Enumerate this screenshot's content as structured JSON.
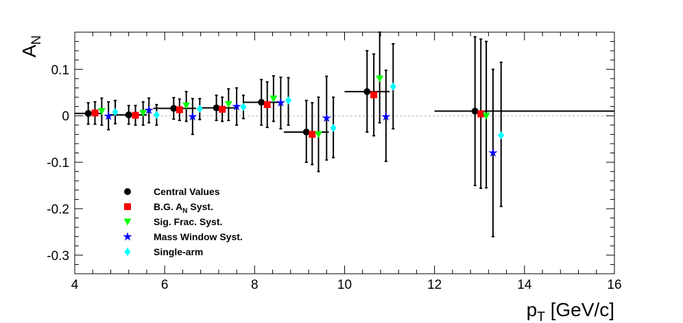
{
  "chart_data": {
    "type": "scatter",
    "title": "",
    "xlabel": {
      "main": "p",
      "sub": "T",
      "rest": " [GeV/c]"
    },
    "ylabel": {
      "main": "A",
      "sub": "N"
    },
    "xlim": [
      4,
      16
    ],
    "ylim": [
      -0.34,
      0.18
    ],
    "xticks": [
      {
        "v": 4,
        "label": "4"
      },
      {
        "v": 6,
        "label": "6"
      },
      {
        "v": 8,
        "label": "8"
      },
      {
        "v": 10,
        "label": "10"
      },
      {
        "v": 12,
        "label": "12"
      },
      {
        "v": 14,
        "label": "14"
      },
      {
        "v": 16,
        "label": "16"
      }
    ],
    "yticks": [
      {
        "v": 0.1,
        "label": "0.1"
      },
      {
        "v": 0,
        "label": "0"
      },
      {
        "v": -0.1,
        "label": "-0.1"
      },
      {
        "v": -0.2,
        "label": "-0.2"
      },
      {
        "v": -0.3,
        "label": "-0.3"
      }
    ],
    "zero_line": true,
    "grid": false,
    "legend_position": "bottom-left",
    "series": [
      {
        "name": "Central Values",
        "color": "#000000",
        "marker": "circle",
        "points": [
          {
            "x": 4.3,
            "y": 0.005,
            "xlo": 4.0,
            "xhi": 4.6,
            "ylo": -0.018,
            "yhi": 0.028
          },
          {
            "x": 5.2,
            "y": 0.002,
            "xlo": 4.75,
            "xhi": 5.6,
            "ylo": -0.018,
            "yhi": 0.022
          },
          {
            "x": 6.2,
            "y": 0.016,
            "xlo": 5.75,
            "xhi": 6.7,
            "ylo": -0.007,
            "yhi": 0.039
          },
          {
            "x": 7.15,
            "y": 0.017,
            "xlo": 6.8,
            "xhi": 7.6,
            "ylo": -0.01,
            "yhi": 0.044
          },
          {
            "x": 8.15,
            "y": 0.029,
            "xlo": 7.75,
            "xhi": 8.6,
            "ylo": -0.02,
            "yhi": 0.078
          },
          {
            "x": 9.15,
            "y": -0.035,
            "xlo": 8.65,
            "xhi": 9.65,
            "ylo": -0.1,
            "yhi": 0.033
          },
          {
            "x": 10.5,
            "y": 0.052,
            "xlo": 10.0,
            "xhi": 11.0,
            "ylo": -0.035,
            "yhi": 0.14
          },
          {
            "x": 12.9,
            "y": 0.01,
            "xlo": 12.0,
            "xhi": 16.0,
            "ylo": -0.15,
            "yhi": 0.17
          }
        ]
      },
      {
        "name": "B.G. A_N Syst.",
        "color": "#ff0000",
        "marker": "square",
        "points": [
          {
            "x": 4.45,
            "y": 0.006,
            "ylo": -0.018,
            "yhi": 0.03
          },
          {
            "x": 5.35,
            "y": 0.001,
            "ylo": -0.02,
            "yhi": 0.022
          },
          {
            "x": 6.33,
            "y": 0.013,
            "ylo": -0.01,
            "yhi": 0.036
          },
          {
            "x": 7.28,
            "y": 0.014,
            "ylo": -0.012,
            "yhi": 0.04
          },
          {
            "x": 8.28,
            "y": 0.024,
            "ylo": -0.025,
            "yhi": 0.073
          },
          {
            "x": 9.28,
            "y": -0.04,
            "ylo": -0.105,
            "yhi": 0.028
          },
          {
            "x": 10.65,
            "y": 0.045,
            "ylo": -0.043,
            "yhi": 0.133
          },
          {
            "x": 13.03,
            "y": 0.004,
            "ylo": -0.156,
            "yhi": 0.165
          }
        ]
      },
      {
        "name": "Sig. Frac. Syst.",
        "color": "#00ff00",
        "marker": "triangle-down",
        "points": [
          {
            "x": 4.6,
            "y": 0.01,
            "ylo": -0.02,
            "yhi": 0.038
          },
          {
            "x": 5.52,
            "y": 0.006,
            "ylo": -0.02,
            "yhi": 0.03
          },
          {
            "x": 6.48,
            "y": 0.022,
            "ylo": -0.012,
            "yhi": 0.052
          },
          {
            "x": 7.42,
            "y": 0.025,
            "ylo": -0.01,
            "yhi": 0.058
          },
          {
            "x": 8.42,
            "y": 0.037,
            "ylo": -0.012,
            "yhi": 0.086
          },
          {
            "x": 9.42,
            "y": -0.04,
            "ylo": -0.12,
            "yhi": 0.04
          },
          {
            "x": 10.78,
            "y": 0.08,
            "ylo": -0.015,
            "yhi": 0.18
          },
          {
            "x": 13.15,
            "y": 0.0,
            "ylo": -0.155,
            "yhi": 0.16
          }
        ]
      },
      {
        "name": "Mass Window Syst.",
        "color": "#0000ff",
        "marker": "star",
        "points": [
          {
            "x": 4.75,
            "y": -0.001,
            "ylo": -0.03,
            "yhi": 0.03
          },
          {
            "x": 5.65,
            "y": 0.012,
            "ylo": -0.015,
            "yhi": 0.038
          },
          {
            "x": 6.62,
            "y": -0.002,
            "ylo": -0.04,
            "yhi": 0.037
          },
          {
            "x": 7.6,
            "y": 0.02,
            "ylo": -0.02,
            "yhi": 0.06
          },
          {
            "x": 8.58,
            "y": 0.028,
            "ylo": -0.028,
            "yhi": 0.083
          },
          {
            "x": 9.6,
            "y": -0.005,
            "ylo": -0.095,
            "yhi": 0.085
          },
          {
            "x": 10.92,
            "y": -0.002,
            "ylo": -0.098,
            "yhi": 0.098
          },
          {
            "x": 13.3,
            "y": -0.08,
            "ylo": -0.26,
            "yhi": 0.1
          }
        ]
      },
      {
        "name": "Single-arm",
        "color": "#00ffff",
        "marker": "diamond",
        "points": [
          {
            "x": 4.9,
            "y": 0.008,
            "ylo": -0.017,
            "yhi": 0.033
          },
          {
            "x": 5.82,
            "y": 0.002,
            "ylo": -0.02,
            "yhi": 0.024
          },
          {
            "x": 6.78,
            "y": 0.015,
            "ylo": -0.008,
            "yhi": 0.037
          },
          {
            "x": 7.75,
            "y": 0.019,
            "ylo": -0.006,
            "yhi": 0.044
          },
          {
            "x": 8.75,
            "y": 0.033,
            "ylo": -0.02,
            "yhi": 0.082
          },
          {
            "x": 9.75,
            "y": -0.026,
            "ylo": -0.09,
            "yhi": 0.04
          },
          {
            "x": 11.08,
            "y": 0.063,
            "ylo": -0.028,
            "yhi": 0.155
          },
          {
            "x": 13.48,
            "y": -0.042,
            "ylo": -0.195,
            "yhi": 0.115
          }
        ]
      }
    ],
    "legend": [
      {
        "text": "Central Values",
        "color": "#000000",
        "marker": "circle"
      },
      {
        "text": "B.G. A",
        "sub": "N",
        "rest": " Syst.",
        "color": "#ff0000",
        "marker": "square"
      },
      {
        "text": "Sig. Frac. Syst.",
        "color": "#00ff00",
        "marker": "triangle-down"
      },
      {
        "text": "Mass Window Syst.",
        "color": "#0000ff",
        "marker": "star"
      },
      {
        "text": "Single-arm",
        "color": "#00ffff",
        "marker": "diamond"
      }
    ]
  }
}
